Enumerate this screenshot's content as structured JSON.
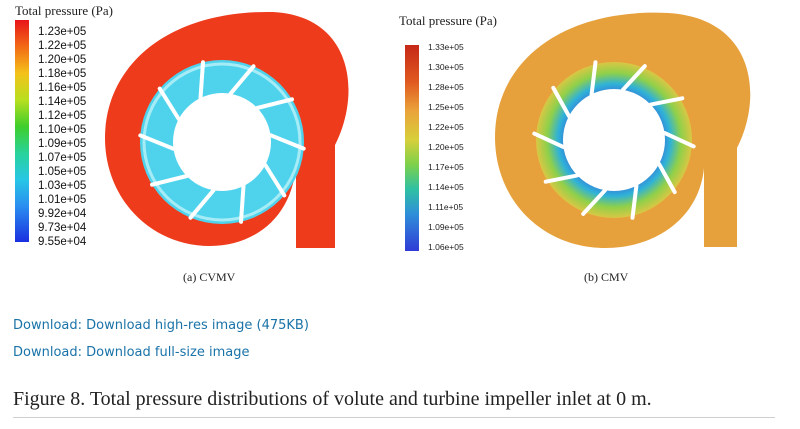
{
  "panel_a": {
    "legend_title": "Total pressure (Pa)",
    "ticks": [
      "1.23e+05",
      "1.22e+05",
      "1.20e+05",
      "1.18e+05",
      "1.16e+05",
      "1.14e+05",
      "1.12e+05",
      "1.10e+05",
      "1.09e+05",
      "1.07e+05",
      "1.05e+05",
      "1.03e+05",
      "1.01e+05",
      "9.92e+04",
      "9.73e+04",
      "9.55e+04"
    ],
    "caption": "(a) CVMV",
    "colors": {
      "volute": "#ee3b1c",
      "impeller": "#4fd3ec",
      "blade": "#ffffff"
    }
  },
  "panel_b": {
    "legend_title": "Total pressure (Pa)",
    "ticks": [
      "1.33e+05",
      "1.30e+05",
      "1.28e+05",
      "1.25e+05",
      "1.22e+05",
      "1.20e+05",
      "1.17e+05",
      "1.14e+05",
      "1.11e+05",
      "1.09e+05",
      "1.06e+05"
    ],
    "caption": "(b) CMV",
    "colors": {
      "volute": "#e6a13c",
      "impeller_outer": "#8fd04a",
      "impeller_inner": "#3b63d8",
      "blade": "#ffffff"
    }
  },
  "links": {
    "high_res": "Download: Download high-res image (475KB)",
    "full_size": "Download: Download full-size image"
  },
  "figure_caption": "Figure 8. Total pressure distributions of volute and turbine impeller inlet at 0 m."
}
